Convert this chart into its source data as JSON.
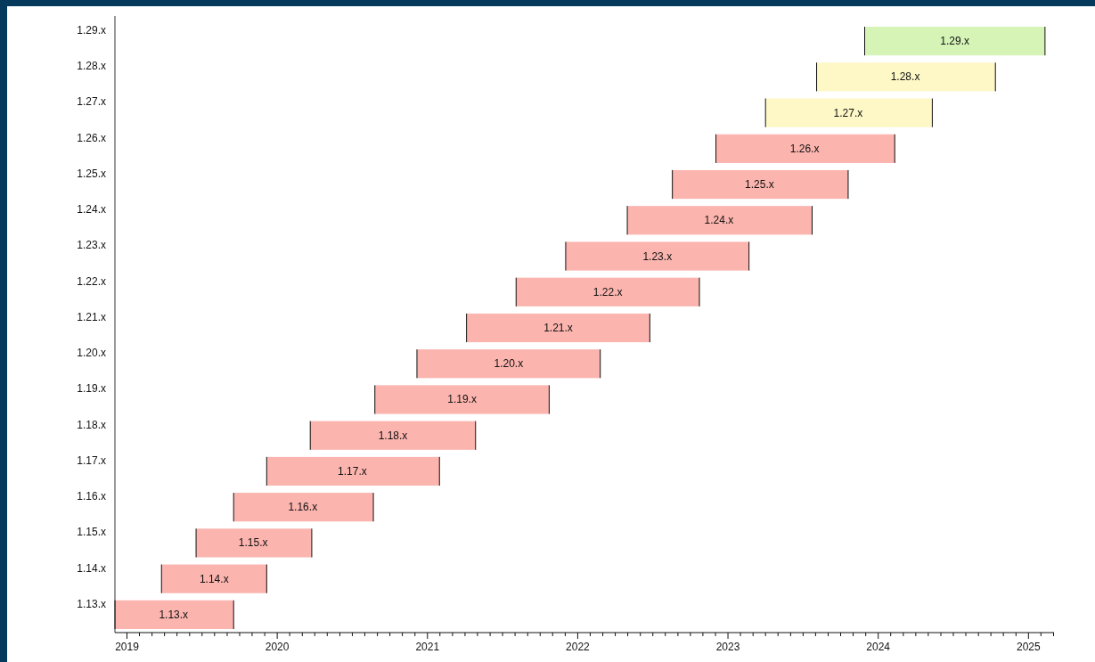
{
  "chart_data": {
    "type": "bar",
    "orientation": "horizontal",
    "categories": [
      "1.29.x",
      "1.28.x",
      "1.27.x",
      "1.26.x",
      "1.25.x",
      "1.24.x",
      "1.23.x",
      "1.22.x",
      "1.21.x",
      "1.20.x",
      "1.19.x",
      "1.18.x",
      "1.17.x",
      "1.16.x",
      "1.15.x",
      "1.14.x",
      "1.13.x"
    ],
    "base": [
      2023.91,
      2023.59,
      2023.25,
      2022.92,
      2022.63,
      2022.33,
      2021.92,
      2021.59,
      2021.26,
      2020.93,
      2020.65,
      2020.22,
      2019.93,
      2019.71,
      2019.46,
      2019.23,
      2018.92
    ],
    "values": [
      1.2,
      1.19,
      1.11,
      1.19,
      1.17,
      1.23,
      1.22,
      1.22,
      1.22,
      1.22,
      1.16,
      1.1,
      1.15,
      0.93,
      0.77,
      0.7,
      0.79
    ],
    "colors": [
      "#d5f4b6",
      "#fef7c6",
      "#fef7c6",
      "#fbb4ae",
      "#fbb4ae",
      "#fbb4ae",
      "#fbb4ae",
      "#fbb4ae",
      "#fbb4ae",
      "#fbb4ae",
      "#fbb4ae",
      "#fbb4ae",
      "#fbb4ae",
      "#fbb4ae",
      "#fbb4ae",
      "#fbb4ae",
      "#fbb4ae"
    ],
    "annotations": [
      {
        "text": "1.29.x",
        "x": 2024.51,
        "y": "1.29.x"
      },
      {
        "text": "1.28.x",
        "x": 2024.18,
        "y": "1.28.x"
      },
      {
        "text": "1.27.x",
        "x": 2023.8,
        "y": "1.27.x"
      },
      {
        "text": "1.26.x",
        "x": 2023.51,
        "y": "1.26.x"
      },
      {
        "text": "1.25.x",
        "x": 2023.21,
        "y": "1.25.x"
      },
      {
        "text": "1.24.x",
        "x": 2022.94,
        "y": "1.24.x"
      },
      {
        "text": "1.23.x",
        "x": 2022.53,
        "y": "1.23.x"
      },
      {
        "text": "1.22.x",
        "x": 2022.2,
        "y": "1.22.x"
      },
      {
        "text": "1.21.x",
        "x": 2021.87,
        "y": "1.21.x"
      },
      {
        "text": "1.20.x",
        "x": 2021.54,
        "y": "1.20.x"
      },
      {
        "text": "1.19.x",
        "x": 2021.23,
        "y": "1.19.x"
      },
      {
        "text": "1.18.x",
        "x": 2020.77,
        "y": "1.18.x"
      },
      {
        "text": "1.17.x",
        "x": 2020.5,
        "y": "1.17.x"
      },
      {
        "text": "1.16.x",
        "x": 2020.17,
        "y": "1.16.x"
      },
      {
        "text": "1.15.x",
        "x": 2019.84,
        "y": "1.15.x"
      },
      {
        "text": "1.14.x",
        "x": 2019.58,
        "y": "1.14.x"
      },
      {
        "text": "1.13.x",
        "x": 2019.31,
        "y": "1.13.x"
      }
    ],
    "xlim": [
      2018.92,
      2025.17
    ],
    "xticks": [
      2019,
      {
        "value": 2019.083,
        "label": null
      },
      {
        "value": 2019.167,
        "label": null
      },
      {
        "value": 2019.25,
        "label": null
      },
      {
        "value": 2019.333,
        "label": null
      },
      {
        "value": 2019.417,
        "label": null
      },
      {
        "value": 2019.5,
        "label": null
      },
      {
        "value": 2019.583,
        "label": null
      },
      {
        "value": 2019.667,
        "label": null
      },
      {
        "value": 2019.75,
        "label": null
      },
      {
        "value": 2019.833,
        "label": null
      },
      {
        "value": 2019.917,
        "label": null
      },
      2020,
      {
        "value": 2020.083,
        "label": null
      },
      {
        "value": 2020.167,
        "label": null
      },
      {
        "value": 2020.25,
        "label": null
      },
      {
        "value": 2020.333,
        "label": null
      },
      {
        "value": 2020.417,
        "label": null
      },
      {
        "value": 2020.5,
        "label": null
      },
      {
        "value": 2020.583,
        "label": null
      },
      {
        "value": 2020.667,
        "label": null
      },
      {
        "value": 2020.75,
        "label": null
      },
      {
        "value": 2020.833,
        "label": null
      },
      {
        "value": 2020.917,
        "label": null
      },
      2021,
      {
        "value": 2021.083,
        "label": null
      },
      {
        "value": 2021.167,
        "label": null
      },
      {
        "value": 2021.25,
        "label": null
      },
      {
        "value": 2021.333,
        "label": null
      },
      {
        "value": 2021.417,
        "label": null
      },
      {
        "value": 2021.5,
        "label": null
      },
      {
        "value": 2021.583,
        "label": null
      },
      {
        "value": 2021.667,
        "label": null
      },
      {
        "value": 2021.75,
        "label": null
      },
      {
        "value": 2021.833,
        "label": null
      },
      {
        "value": 2021.917,
        "label": null
      },
      2022,
      {
        "value": 2022.083,
        "label": null
      },
      {
        "value": 2022.167,
        "label": null
      },
      {
        "value": 2022.25,
        "label": null
      },
      {
        "value": 2022.333,
        "label": null
      },
      {
        "value": 2022.417,
        "label": null
      },
      {
        "value": 2022.5,
        "label": null
      },
      {
        "value": 2022.583,
        "label": null
      },
      {
        "value": 2022.667,
        "label": null
      },
      {
        "value": 2022.75,
        "label": null
      },
      {
        "value": 2022.833,
        "label": null
      },
      {
        "value": 2022.917,
        "label": null
      },
      2023,
      {
        "value": 2023.083,
        "label": null
      },
      {
        "value": 2023.167,
        "label": null
      },
      {
        "value": 2023.25,
        "label": null
      },
      {
        "value": 2023.333,
        "label": null
      },
      {
        "value": 2023.417,
        "label": null
      },
      {
        "value": 2023.5,
        "label": null
      },
      {
        "value": 2023.583,
        "label": null
      },
      {
        "value": 2023.667,
        "label": null
      },
      {
        "value": 2023.75,
        "label": null
      },
      {
        "value": 2023.833,
        "label": null
      },
      {
        "value": 2023.917,
        "label": null
      },
      2024,
      {
        "value": 2024.083,
        "label": null
      },
      {
        "value": 2024.167,
        "label": null
      },
      {
        "value": 2024.25,
        "label": null
      },
      {
        "value": 2024.333,
        "label": null
      },
      {
        "value": 2024.417,
        "label": null
      },
      {
        "value": 2024.5,
        "label": null
      },
      {
        "value": 2024.583,
        "label": null
      },
      {
        "value": 2024.667,
        "label": null
      },
      {
        "value": 2024.75,
        "label": null
      },
      {
        "value": 2024.833,
        "label": null
      },
      {
        "value": 2024.917,
        "label": null
      },
      2025,
      {
        "value": 2025.083,
        "label": null
      },
      {
        "value": 2025.167,
        "label": null
      }
    ]
  }
}
